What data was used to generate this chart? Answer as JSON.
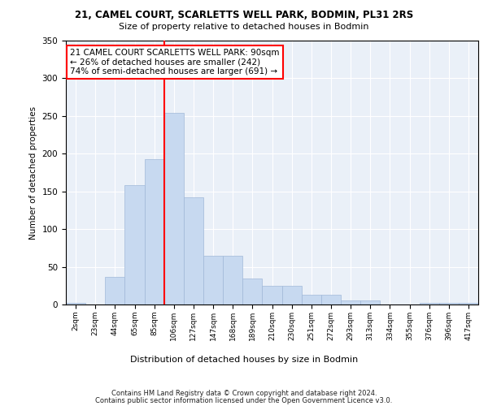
{
  "title1": "21, CAMEL COURT, SCARLETTS WELL PARK, BODMIN, PL31 2RS",
  "title2": "Size of property relative to detached houses in Bodmin",
  "xlabel": "Distribution of detached houses by size in Bodmin",
  "ylabel": "Number of detached properties",
  "bin_labels": [
    "2sqm",
    "23sqm",
    "44sqm",
    "65sqm",
    "85sqm",
    "106sqm",
    "127sqm",
    "147sqm",
    "168sqm",
    "189sqm",
    "210sqm",
    "230sqm",
    "251sqm",
    "272sqm",
    "293sqm",
    "313sqm",
    "334sqm",
    "355sqm",
    "376sqm",
    "396sqm",
    "417sqm"
  ],
  "bar_values": [
    2,
    0,
    37,
    158,
    193,
    254,
    142,
    65,
    65,
    35,
    25,
    25,
    13,
    13,
    5,
    5,
    0,
    0,
    2,
    2,
    2
  ],
  "bar_color": "#c7d9f0",
  "bar_edge_color": "#a0b8d8",
  "vline_x": 4.5,
  "vline_color": "red",
  "annotation_text": "21 CAMEL COURT SCARLETTS WELL PARK: 90sqm\n← 26% of detached houses are smaller (242)\n74% of semi-detached houses are larger (691) →",
  "annotation_box_color": "white",
  "annotation_box_edge": "red",
  "ylim": [
    0,
    350
  ],
  "yticks": [
    0,
    50,
    100,
    150,
    200,
    250,
    300,
    350
  ],
  "footer1": "Contains HM Land Registry data © Crown copyright and database right 2024.",
  "footer2": "Contains public sector information licensed under the Open Government Licence v3.0.",
  "plot_bg_color": "#eaf0f8"
}
